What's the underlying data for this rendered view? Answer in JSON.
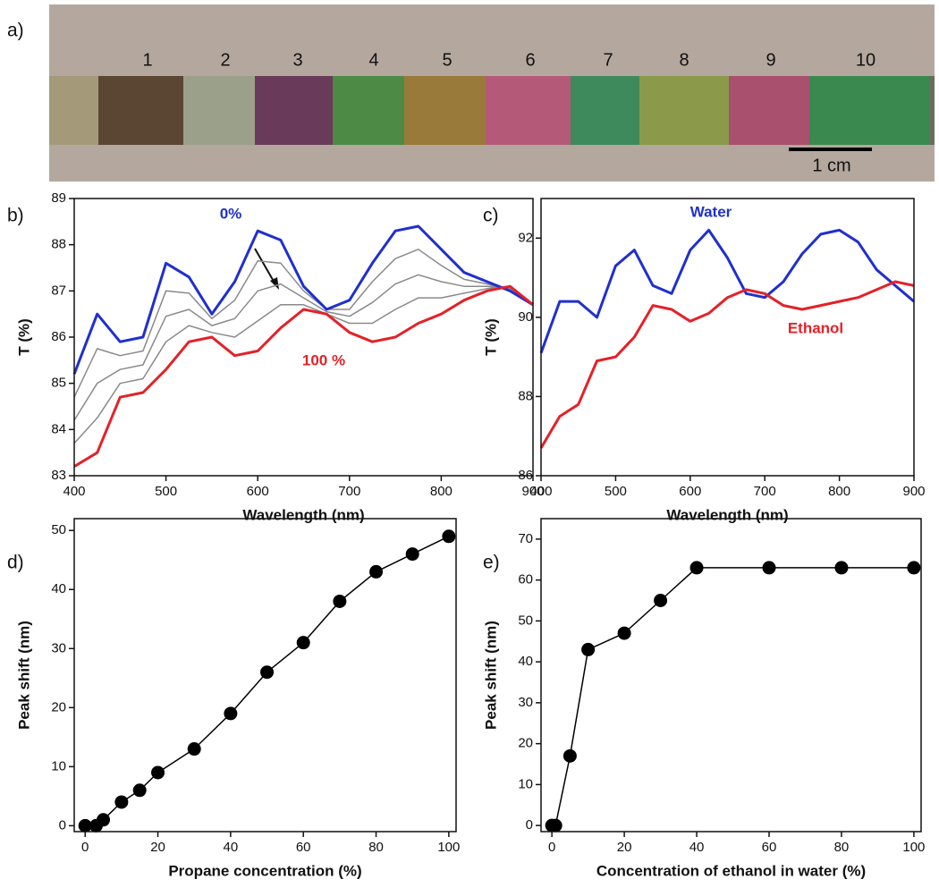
{
  "photo": {
    "panel_label": "a)",
    "sample_labels": [
      "1",
      "2",
      "3",
      "4",
      "5",
      "6",
      "7",
      "8",
      "9",
      "10"
    ],
    "scale_label": "1 cm"
  },
  "chart_data": [
    {
      "type": "line",
      "panel_label": "b)",
      "xlabel": "Wavelength (nm)",
      "ylabel": "T (%)",
      "x": [
        400,
        425,
        450,
        475,
        500,
        525,
        550,
        575,
        600,
        625,
        650,
        675,
        700,
        725,
        750,
        775,
        800,
        825,
        850,
        875,
        900
      ],
      "xlim": [
        400,
        900
      ],
      "xticks": [
        400,
        500,
        600,
        700,
        800,
        900
      ],
      "ylim": [
        83,
        89
      ],
      "yticks": [
        83,
        84,
        85,
        86,
        87,
        88,
        89
      ],
      "series": [
        {
          "color": "#8a8a8a",
          "values": [
            84.7,
            85.75,
            85.6,
            85.7,
            87.0,
            86.95,
            86.4,
            86.8,
            87.65,
            87.6,
            87.0,
            86.6,
            86.6,
            87.2,
            87.7,
            87.9,
            87.55,
            87.25,
            87.15,
            87.0,
            86.7
          ]
        },
        {
          "color": "#8a8a8a",
          "values": [
            84.2,
            85.0,
            85.3,
            85.4,
            86.45,
            86.6,
            86.25,
            86.4,
            87.0,
            87.15,
            86.85,
            86.55,
            86.45,
            86.75,
            87.15,
            87.35,
            87.2,
            87.1,
            87.1,
            87.05,
            86.7
          ]
        },
        {
          "color": "#8a8a8a",
          "values": [
            83.7,
            84.25,
            85.0,
            85.1,
            85.9,
            86.25,
            86.1,
            86.0,
            86.35,
            86.7,
            86.7,
            86.5,
            86.3,
            86.3,
            86.6,
            86.85,
            86.85,
            86.95,
            87.05,
            87.1,
            86.7
          ]
        },
        {
          "name": "0%",
          "color": "#1f2fd0",
          "values": [
            85.2,
            86.5,
            85.9,
            86.0,
            87.6,
            87.3,
            86.5,
            87.2,
            88.3,
            88.1,
            87.1,
            86.6,
            86.8,
            87.6,
            88.3,
            88.4,
            87.9,
            87.4,
            87.2,
            87.0,
            86.7
          ]
        },
        {
          "name": "100 %",
          "color": "#e42128",
          "values": [
            83.2,
            83.5,
            84.7,
            84.8,
            85.3,
            85.9,
            86.0,
            85.6,
            85.7,
            86.2,
            86.6,
            86.5,
            86.1,
            85.9,
            86.0,
            86.3,
            86.5,
            86.8,
            87.0,
            87.1,
            86.7
          ]
        }
      ]
    },
    {
      "type": "line",
      "panel_label": "c)",
      "xlabel": "Wavelength (nm)",
      "ylabel": "T (%)",
      "x": [
        400,
        425,
        450,
        475,
        500,
        525,
        550,
        575,
        600,
        625,
        650,
        675,
        700,
        725,
        750,
        775,
        800,
        825,
        850,
        875,
        900
      ],
      "xlim": [
        400,
        900
      ],
      "xticks": [
        400,
        500,
        600,
        700,
        800,
        900
      ],
      "ylim": [
        86,
        93
      ],
      "yticks": [
        86,
        88,
        90,
        92
      ],
      "series": [
        {
          "name": "Water",
          "color": "#1f2fd0",
          "values": [
            89.1,
            90.4,
            90.4,
            90.0,
            91.3,
            91.7,
            90.8,
            90.6,
            91.7,
            92.2,
            91.5,
            90.6,
            90.5,
            90.9,
            91.6,
            92.1,
            92.2,
            91.9,
            91.2,
            90.8,
            90.4
          ]
        },
        {
          "name": "Ethanol",
          "color": "#e42128",
          "values": [
            86.7,
            87.5,
            87.8,
            88.9,
            89.0,
            89.5,
            90.3,
            90.2,
            89.9,
            90.1,
            90.5,
            90.7,
            90.6,
            90.3,
            90.2,
            90.3,
            90.4,
            90.5,
            90.7,
            90.9,
            90.8
          ]
        }
      ]
    },
    {
      "type": "line",
      "markers": true,
      "panel_label": "d)",
      "xlabel": "Propane concentration (%)",
      "ylabel": "Peak shift (nm)",
      "x": [
        0,
        3,
        5,
        10,
        15,
        20,
        30,
        40,
        50,
        60,
        70,
        80,
        90,
        100
      ],
      "xlim": [
        -3,
        102
      ],
      "xticks": [
        0,
        20,
        40,
        60,
        80,
        100
      ],
      "ylim": [
        -1,
        52
      ],
      "yticks": [
        0,
        10,
        20,
        30,
        40,
        50
      ],
      "series": [
        {
          "color": "#000000",
          "values": [
            0,
            0,
            1,
            4,
            6,
            9,
            13,
            19,
            26,
            31,
            38,
            43,
            46,
            49
          ]
        }
      ]
    },
    {
      "type": "line",
      "markers": true,
      "panel_label": "e)",
      "xlabel": "Concentration of ethanol in water (%)",
      "ylabel": "Peak shift (nm)",
      "x": [
        0,
        1,
        5,
        10,
        20,
        30,
        40,
        60,
        80,
        100
      ],
      "xlim": [
        -3,
        102
      ],
      "xticks": [
        0,
        20,
        40,
        60,
        80,
        100
      ],
      "ylim": [
        -1.5,
        75
      ],
      "yticks": [
        0,
        10,
        20,
        30,
        40,
        50,
        60,
        70
      ],
      "series": [
        {
          "color": "#000000",
          "values": [
            0,
            0,
            17,
            43,
            47,
            55,
            63,
            63,
            63,
            63
          ]
        }
      ]
    }
  ]
}
